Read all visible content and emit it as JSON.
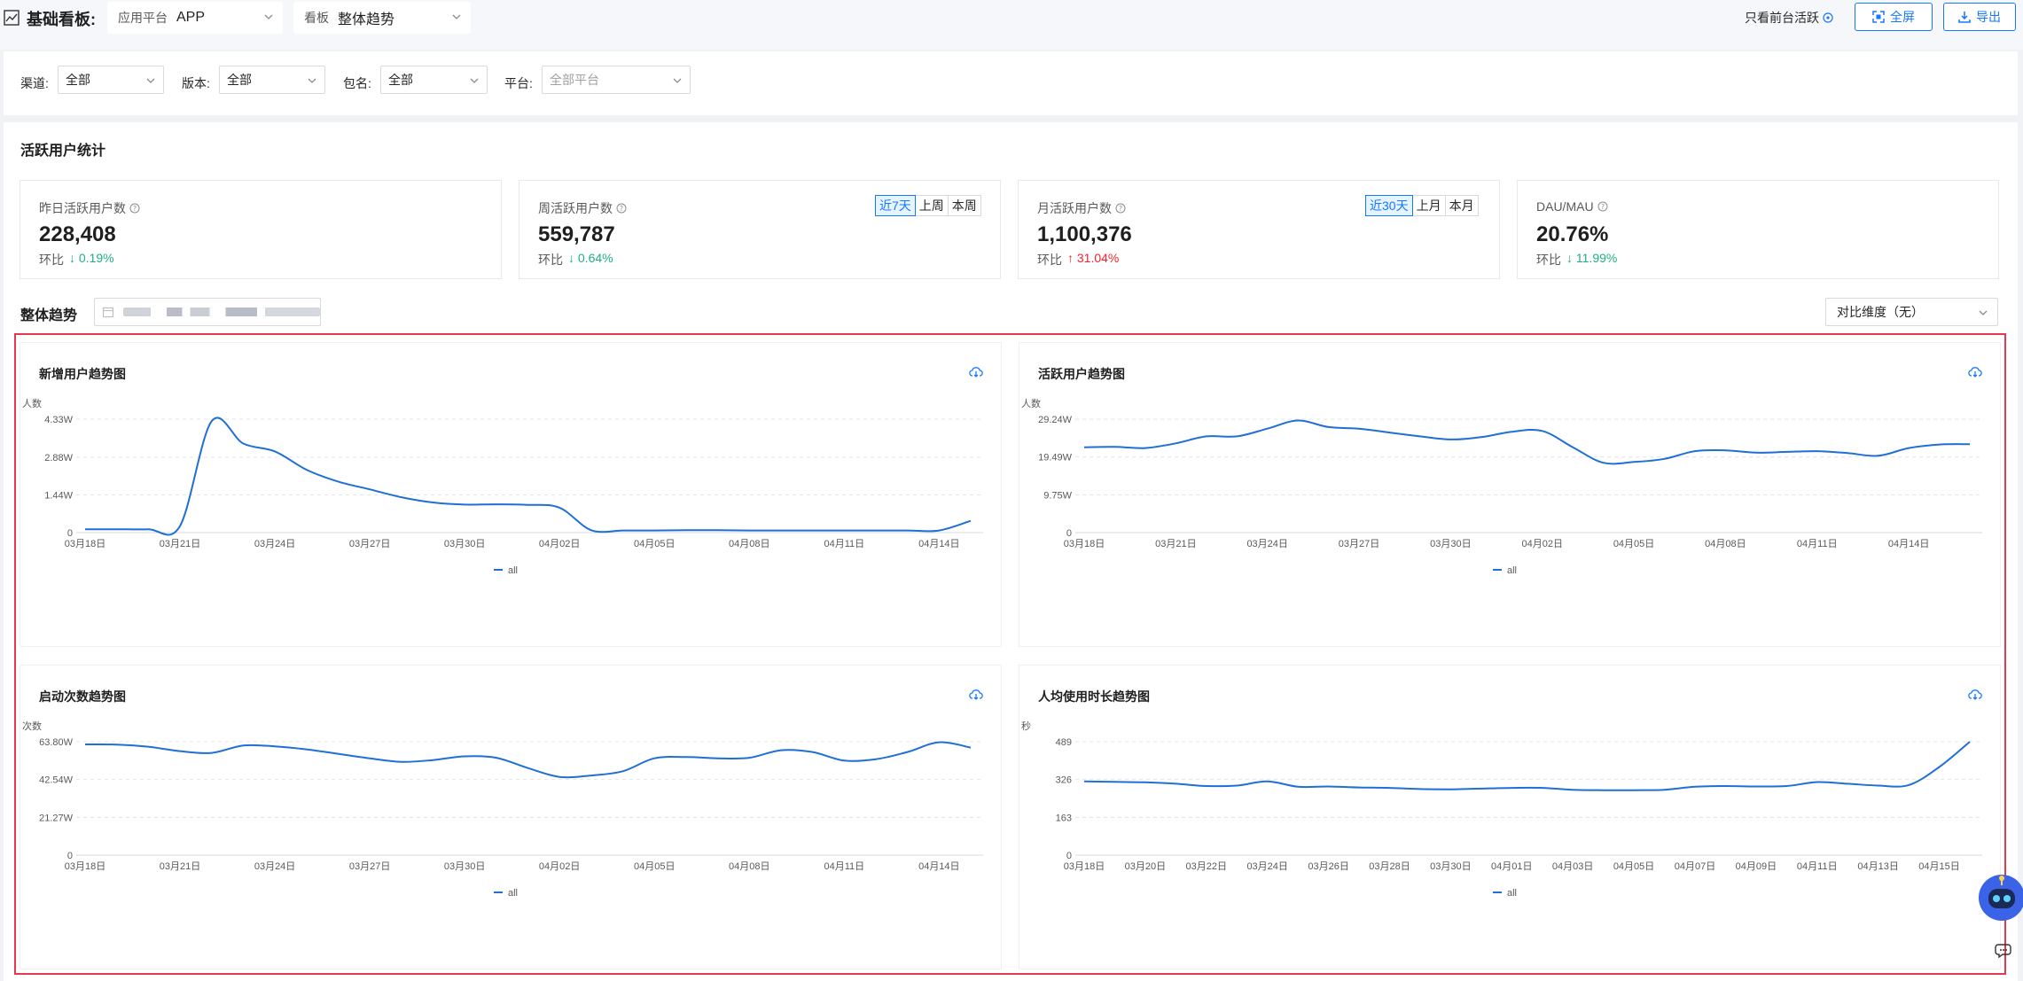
{
  "topbar": {
    "title": "基础看板:",
    "app_select_label": "应用平台",
    "app_select_value": "APP",
    "board_select_label": "看板",
    "board_select_value": "整体趋势",
    "only_foreground": "只看前台活跃",
    "fullscreen_label": "全屏",
    "export_label": "导出"
  },
  "filters": {
    "channel_label": "渠道:",
    "channel_value": "全部",
    "version_label": "版本:",
    "version_value": "全部",
    "package_label": "包名:",
    "package_value": "全部",
    "platform_label": "平台:",
    "platform_value": "全部平台"
  },
  "active_section": {
    "title": "活跃用户统计",
    "cards": [
      {
        "label": "昨日活跃用户数",
        "value": "228,408",
        "change_label": "环比",
        "change": "0.19%",
        "direction": "down"
      },
      {
        "label": "周活跃用户数",
        "value": "559,787",
        "change_label": "环比",
        "change": "0.64%",
        "direction": "down",
        "toggles": [
          "近7天",
          "上周",
          "本周"
        ],
        "active_toggle": "近7天"
      },
      {
        "label": "月活跃用户数",
        "value": "1,100,376",
        "change_label": "环比",
        "change": "31.04%",
        "direction": "up",
        "toggles": [
          "近30天",
          "上月",
          "本月"
        ],
        "active_toggle": "近30天"
      },
      {
        "label": "DAU/MAU",
        "value": "20.76%",
        "change_label": "环比",
        "change": "11.99%",
        "direction": "down"
      }
    ]
  },
  "trend_section": {
    "title": "整体趋势",
    "compare_select": "对比维度（无）"
  },
  "colors": {
    "accent": "#1677ff",
    "line": "#1f6fd6",
    "down": "#20b07a",
    "up": "#f5222d",
    "frame": "#e8384f"
  },
  "chart_data": [
    {
      "type": "line",
      "title": "新增用户趋势图",
      "ylabel": "人数",
      "y_ticks": [
        "0",
        "1.44W",
        "2.88W",
        "4.33W"
      ],
      "y_tick_values": [
        0,
        14400,
        28800,
        43300
      ],
      "ylim": [
        0,
        43300
      ],
      "x_ticks": [
        "03月18日",
        "03月21日",
        "03月24日",
        "03月27日",
        "03月30日",
        "04月02日",
        "04月05日",
        "04月08日",
        "04月11日",
        "04月14日"
      ],
      "x_tick_index": [
        0,
        3,
        6,
        9,
        12,
        15,
        18,
        21,
        24,
        27
      ],
      "series": [
        {
          "name": "all",
          "values": [
            1300,
            1300,
            1300,
            2500,
            42500,
            34000,
            31000,
            24000,
            19500,
            16500,
            13500,
            11500,
            10700,
            10800,
            10600,
            9500,
            900,
            800,
            800,
            900,
            900,
            800,
            800,
            800,
            800,
            800,
            800,
            800,
            4500
          ]
        }
      ]
    },
    {
      "type": "line",
      "title": "活跃用户趋势图",
      "ylabel": "人数",
      "y_ticks": [
        "0",
        "9.75W",
        "19.49W",
        "29.24W"
      ],
      "y_tick_values": [
        0,
        97500,
        194900,
        292400
      ],
      "ylim": [
        0,
        292400
      ],
      "x_ticks": [
        "03月18日",
        "03月21日",
        "03月24日",
        "03月27日",
        "03月30日",
        "04月02日",
        "04月05日",
        "04月08日",
        "04月11日",
        "04月14日"
      ],
      "x_tick_index": [
        0,
        3,
        6,
        9,
        12,
        15,
        18,
        21,
        24,
        27
      ],
      "series": [
        {
          "name": "all",
          "values": [
            220000,
            221000,
            218000,
            230000,
            248000,
            248000,
            268000,
            289000,
            272000,
            268000,
            258000,
            248000,
            240000,
            246000,
            260000,
            262000,
            220000,
            180000,
            182000,
            190000,
            210000,
            212000,
            206000,
            208000,
            210000,
            205000,
            198000,
            218000,
            227000,
            228000
          ]
        }
      ]
    },
    {
      "type": "line",
      "title": "启动次数趋势图",
      "ylabel": "次数",
      "y_ticks": [
        "0",
        "21.27W",
        "42.54W",
        "63.80W"
      ],
      "y_tick_values": [
        0,
        212700,
        425400,
        638000
      ],
      "ylim": [
        0,
        638000
      ],
      "x_ticks": [
        "03月18日",
        "03月21日",
        "03月24日",
        "03月27日",
        "03月30日",
        "04月02日",
        "04月05日",
        "04月08日",
        "04月11日",
        "04月14日"
      ],
      "x_tick_index": [
        0,
        3,
        6,
        9,
        12,
        15,
        18,
        21,
        24,
        27
      ],
      "series": [
        {
          "name": "all",
          "values": [
            623000,
            622000,
            610000,
            585000,
            575000,
            617000,
            612000,
            595000,
            570000,
            545000,
            525000,
            535000,
            556000,
            548000,
            490000,
            440000,
            448000,
            472000,
            545000,
            552000,
            545000,
            548000,
            590000,
            580000,
            532000,
            540000,
            580000,
            635000,
            605000
          ]
        }
      ]
    },
    {
      "type": "line",
      "title": "人均使用时长趋势图",
      "ylabel": "秒",
      "y_ticks": [
        "0",
        "163",
        "326",
        "489"
      ],
      "y_tick_values": [
        0,
        163,
        326,
        489
      ],
      "ylim": [
        0,
        489
      ],
      "x_ticks": [
        "03月18日",
        "03月20日",
        "03月22日",
        "03月24日",
        "03月26日",
        "03月28日",
        "03月30日",
        "04月01日",
        "04月03日",
        "04月05日",
        "04月07日",
        "04月09日",
        "04月11日",
        "04月13日",
        "04月15日"
      ],
      "x_tick_index": [
        0,
        2,
        4,
        6,
        8,
        10,
        12,
        14,
        16,
        18,
        20,
        22,
        24,
        26,
        28
      ],
      "series": [
        {
          "name": "all",
          "values": [
            318,
            316,
            314,
            308,
            298,
            300,
            318,
            295,
            296,
            292,
            290,
            285,
            284,
            287,
            290,
            290,
            282,
            280,
            280,
            282,
            295,
            298,
            296,
            298,
            315,
            308,
            300,
            302,
            380,
            489
          ]
        }
      ]
    }
  ]
}
